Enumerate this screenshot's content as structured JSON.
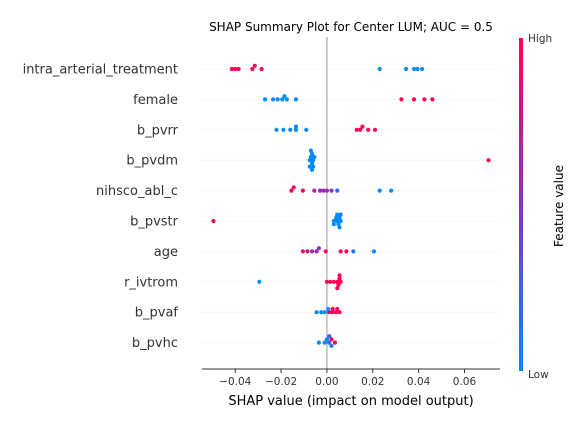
{
  "chart_data": {
    "type": "scatter",
    "subtype": "shap-beeswarm",
    "title": "SHAP Summary Plot for Center LUM; AUC = 0.5",
    "xlabel": "SHAP value (impact on model output)",
    "ylabel": "",
    "xlim": [
      -0.0545,
      0.0755
    ],
    "xticks": [
      -0.04,
      -0.02,
      0.0,
      0.02,
      0.04,
      0.06
    ],
    "xtick_labels": [
      "−0.04",
      "−0.02",
      "0.00",
      "0.02",
      "0.04",
      "0.06"
    ],
    "grid": false,
    "colors": {
      "low": "#1e88e5",
      "high": "#ff0d57",
      "zero_line": "#999999",
      "row_grid": "#cccccc"
    },
    "colorbar": {
      "title": "Feature value",
      "high_label": "High",
      "low_label": "Low"
    },
    "features": [
      {
        "name": "intra_arterial_treatment",
        "points": [
          [
            -0.0415,
            1
          ],
          [
            -0.04,
            1
          ],
          [
            -0.0385,
            1
          ],
          [
            -0.0325,
            1
          ],
          [
            -0.0315,
            1
          ],
          [
            -0.0285,
            1
          ],
          [
            0.023,
            0
          ],
          [
            0.0345,
            0
          ],
          [
            0.038,
            0
          ],
          [
            0.0395,
            0
          ],
          [
            0.0415,
            0
          ]
        ]
      },
      {
        "name": "female",
        "points": [
          [
            -0.027,
            0
          ],
          [
            -0.0235,
            0
          ],
          [
            -0.0215,
            0
          ],
          [
            -0.0195,
            0
          ],
          [
            -0.0185,
            0
          ],
          [
            -0.0175,
            0
          ],
          [
            -0.0135,
            0
          ],
          [
            0.0325,
            1
          ],
          [
            0.038,
            1
          ],
          [
            0.0425,
            1
          ],
          [
            0.046,
            1
          ]
        ]
      },
      {
        "name": "b_pvrr",
        "points": [
          [
            -0.022,
            0
          ],
          [
            -0.019,
            0
          ],
          [
            -0.016,
            0
          ],
          [
            -0.0135,
            0
          ],
          [
            -0.0135,
            0
          ],
          [
            -0.009,
            0
          ],
          [
            0.013,
            1
          ],
          [
            0.0145,
            1
          ],
          [
            0.0155,
            1
          ],
          [
            0.018,
            1
          ],
          [
            0.021,
            1
          ]
        ]
      },
      {
        "name": "b_pvdm",
        "points": [
          [
            -0.0075,
            0
          ],
          [
            -0.007,
            0
          ],
          [
            -0.0065,
            0
          ],
          [
            -0.0065,
            0
          ],
          [
            -0.006,
            0
          ],
          [
            -0.0055,
            0
          ],
          [
            -0.0075,
            0
          ],
          [
            -0.007,
            0
          ],
          [
            -0.0065,
            0
          ],
          [
            -0.006,
            0
          ],
          [
            0.0705,
            1
          ]
        ]
      },
      {
        "name": "nihsco_abl_c",
        "points": [
          [
            -0.0155,
            1
          ],
          [
            -0.0145,
            1
          ],
          [
            -0.0105,
            1
          ],
          [
            -0.0055,
            0.7
          ],
          [
            -0.003,
            0.6
          ],
          [
            -0.0015,
            0.6
          ],
          [
            0.0,
            0.6
          ],
          [
            0.002,
            0.5
          ],
          [
            0.0045,
            0.2
          ],
          [
            0.023,
            0
          ],
          [
            0.028,
            0
          ]
        ]
      },
      {
        "name": "b_pvstr",
        "points": [
          [
            -0.0495,
            1
          ],
          [
            0.003,
            0
          ],
          [
            0.004,
            0
          ],
          [
            0.0045,
            0
          ],
          [
            0.005,
            0
          ],
          [
            0.006,
            0
          ],
          [
            0.003,
            0
          ],
          [
            0.0045,
            0
          ],
          [
            0.0055,
            0
          ],
          [
            0.006,
            0
          ],
          [
            0.0055,
            0
          ]
        ]
      },
      {
        "name": "age",
        "points": [
          [
            -0.0105,
            0.8
          ],
          [
            -0.0085,
            0.8
          ],
          [
            -0.0065,
            0.6
          ],
          [
            -0.0045,
            0.6
          ],
          [
            -0.0035,
            0.5
          ],
          [
            -0.0005,
            1
          ],
          [
            0.006,
            1
          ],
          [
            0.0085,
            1
          ],
          [
            0.0115,
            0.1
          ],
          [
            0.0205,
            0
          ]
        ]
      },
      {
        "name": "r_ivtrom",
        "points": [
          [
            -0.0295,
            0
          ],
          [
            0.0,
            1
          ],
          [
            0.0015,
            1
          ],
          [
            0.003,
            1
          ],
          [
            0.0045,
            1
          ],
          [
            0.0055,
            1
          ],
          [
            0.005,
            1
          ],
          [
            0.0055,
            1
          ],
          [
            0.0045,
            1
          ],
          [
            0.006,
            1
          ]
        ]
      },
      {
        "name": "b_pvaf",
        "points": [
          [
            -0.0045,
            0
          ],
          [
            -0.0025,
            0
          ],
          [
            -0.001,
            0
          ],
          [
            0.001,
            1
          ],
          [
            0.0025,
            1
          ],
          [
            0.004,
            1
          ],
          [
            0.0055,
            1
          ],
          [
            0.0005,
            0
          ],
          [
            0.0025,
            1
          ],
          [
            0.0045,
            1
          ]
        ]
      },
      {
        "name": "b_pvhc",
        "points": [
          [
            -0.0035,
            0
          ],
          [
            -0.001,
            0
          ],
          [
            0.0,
            0
          ],
          [
            0.001,
            0.2
          ],
          [
            0.002,
            1
          ],
          [
            0.0035,
            1
          ],
          [
            0.002,
            0.1
          ],
          [
            0.001,
            0.2
          ]
        ]
      }
    ]
  }
}
